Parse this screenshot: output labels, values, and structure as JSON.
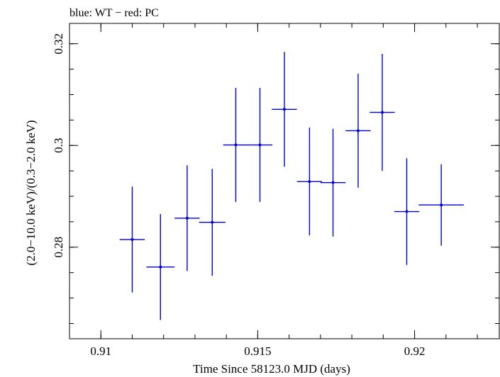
{
  "chart_data": {
    "type": "scatter",
    "title": "blue: WT − red: PC",
    "xlabel": "Time Since 58123.0 MJD (days)",
    "ylabel": "(2.0−10.0 keV)/(0.3−2.0 keV)",
    "xlim": [
      0.909,
      0.9227
    ],
    "ylim": [
      0.262,
      0.324
    ],
    "x_ticks": [
      {
        "value": 0.91,
        "label": "0.91"
      },
      {
        "value": 0.915,
        "label": "0.915"
      },
      {
        "value": 0.92,
        "label": "0.92"
      }
    ],
    "y_ticks": [
      {
        "value": 0.28,
        "label": "0.28"
      },
      {
        "value": 0.3,
        "label": "0.3"
      },
      {
        "value": 0.32,
        "label": "0.32"
      }
    ],
    "x_minor_step": 0.001,
    "y_minor_step": 0.005,
    "grid": false,
    "series": [
      {
        "name": "WT",
        "color": "#0000dd",
        "points": [
          {
            "x": 0.911,
            "xerr": 0.0004,
            "y": 0.2815,
            "yerr": 0.0104
          },
          {
            "x": 0.9119,
            "xerr": 0.00045,
            "y": 0.2761,
            "yerr": 0.0104
          },
          {
            "x": 0.91275,
            "xerr": 0.0004,
            "y": 0.2857,
            "yerr": 0.0104
          },
          {
            "x": 0.91355,
            "xerr": 0.00042,
            "y": 0.2849,
            "yerr": 0.0105
          },
          {
            "x": 0.9143,
            "xerr": 0.0004,
            "y": 0.3001,
            "yerr": 0.0112
          },
          {
            "x": 0.91507,
            "xerr": 0.0004,
            "y": 0.3001,
            "yerr": 0.0112
          },
          {
            "x": 0.91585,
            "xerr": 0.0004,
            "y": 0.3071,
            "yerr": 0.0113
          },
          {
            "x": 0.91665,
            "xerr": 0.0004,
            "y": 0.2929,
            "yerr": 0.0106
          },
          {
            "x": 0.9174,
            "xerr": 0.0004,
            "y": 0.2927,
            "yerr": 0.0106
          },
          {
            "x": 0.9182,
            "xerr": 0.0004,
            "y": 0.3029,
            "yerr": 0.0112
          },
          {
            "x": 0.91897,
            "xerr": 0.0004,
            "y": 0.3065,
            "yerr": 0.0115
          },
          {
            "x": 0.91975,
            "xerr": 0.0004,
            "y": 0.287,
            "yerr": 0.0105
          },
          {
            "x": 0.92085,
            "xerr": 0.00072,
            "y": 0.2883,
            "yerr": 0.008
          }
        ]
      }
    ]
  }
}
